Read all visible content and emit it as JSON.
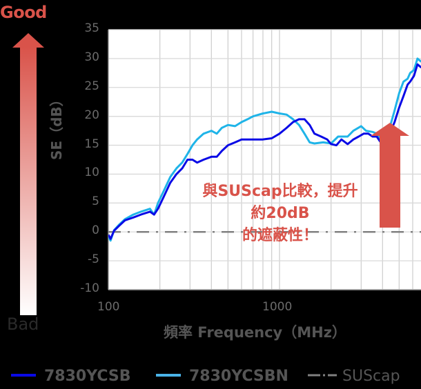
{
  "indicator": {
    "good_label": "Good",
    "bad_label": "Bad",
    "arrow_color_top": "#d9534a",
    "arrow_color_bottom": "#ffffff"
  },
  "callout": {
    "line1": "與SUScap比較，提升",
    "line2": "約20dB",
    "line3": "的遮蔽性！",
    "color": "#d9534a"
  },
  "chart_data": {
    "type": "line",
    "title": "",
    "xlabel": "頻率 Frequency（MHz）",
    "ylabel": "SE（dB）",
    "xscale": "log",
    "xlim": [
      100,
      6000
    ],
    "ylim": [
      -10,
      35
    ],
    "x_ticks": [
      "100",
      "1000"
    ],
    "y_ticks": [
      "35",
      "30",
      "25",
      "20",
      "15",
      "10",
      "5",
      "0",
      "-5",
      "-10"
    ],
    "grid": true,
    "legend_position": "bottom",
    "series": [
      {
        "name": "7830YCSB",
        "color": "#0a0ae6",
        "style": "solid",
        "points": [
          [
            100,
            -0.5
          ],
          [
            103,
            -1.2
          ],
          [
            108,
            0.2
          ],
          [
            115,
            1
          ],
          [
            125,
            2
          ],
          [
            140,
            2.5
          ],
          [
            155,
            3
          ],
          [
            175,
            3.5
          ],
          [
            185,
            3
          ],
          [
            195,
            4
          ],
          [
            210,
            6
          ],
          [
            230,
            8.5
          ],
          [
            250,
            10
          ],
          [
            270,
            11
          ],
          [
            290,
            12.5
          ],
          [
            310,
            12.5
          ],
          [
            330,
            12
          ],
          [
            360,
            12.5
          ],
          [
            400,
            13
          ],
          [
            430,
            13
          ],
          [
            460,
            14
          ],
          [
            500,
            15
          ],
          [
            550,
            15.5
          ],
          [
            600,
            16
          ],
          [
            650,
            16
          ],
          [
            700,
            16
          ],
          [
            800,
            16
          ],
          [
            900,
            16.2
          ],
          [
            1000,
            17
          ],
          [
            1100,
            18
          ],
          [
            1200,
            19
          ],
          [
            1300,
            19.5
          ],
          [
            1400,
            19.5
          ],
          [
            1500,
            18.5
          ],
          [
            1600,
            17
          ],
          [
            1750,
            16.5
          ],
          [
            1900,
            16
          ],
          [
            2000,
            15.2
          ],
          [
            2150,
            15
          ],
          [
            2300,
            16
          ],
          [
            2500,
            15.2
          ],
          [
            2700,
            16
          ],
          [
            2900,
            16.5
          ],
          [
            3100,
            17
          ],
          [
            3300,
            17
          ],
          [
            3500,
            16.5
          ],
          [
            3700,
            16.5
          ],
          [
            3900,
            15.5
          ],
          [
            4100,
            16
          ],
          [
            4400,
            17
          ],
          [
            4700,
            19
          ],
          [
            5000,
            21.5
          ],
          [
            5300,
            23.5
          ],
          [
            5600,
            25.5
          ],
          [
            5800,
            26
          ],
          [
            6100,
            27
          ],
          [
            6400,
            29
          ],
          [
            6700,
            28.5
          ],
          [
            7000,
            29
          ],
          [
            7300,
            28
          ],
          [
            7600,
            28.3
          ],
          [
            8000,
            27
          ]
        ]
      },
      {
        "name": "7830YCSBN",
        "color": "#1fb4e8",
        "style": "solid",
        "points": [
          [
            100,
            -0.8
          ],
          [
            103,
            -1.5
          ],
          [
            108,
            0.3
          ],
          [
            115,
            1.2
          ],
          [
            125,
            2.2
          ],
          [
            140,
            3
          ],
          [
            155,
            3.5
          ],
          [
            175,
            4
          ],
          [
            185,
            3
          ],
          [
            195,
            5
          ],
          [
            210,
            7
          ],
          [
            230,
            9.5
          ],
          [
            250,
            11
          ],
          [
            270,
            12
          ],
          [
            290,
            13.5
          ],
          [
            310,
            15
          ],
          [
            330,
            16
          ],
          [
            360,
            17
          ],
          [
            400,
            17.5
          ],
          [
            430,
            17
          ],
          [
            460,
            18
          ],
          [
            500,
            18.5
          ],
          [
            550,
            18.3
          ],
          [
            600,
            19
          ],
          [
            650,
            19.5
          ],
          [
            700,
            20
          ],
          [
            800,
            20.5
          ],
          [
            900,
            20.8
          ],
          [
            1000,
            20.5
          ],
          [
            1100,
            20.3
          ],
          [
            1200,
            19.5
          ],
          [
            1300,
            18.5
          ],
          [
            1400,
            17
          ],
          [
            1500,
            15.5
          ],
          [
            1600,
            15.3
          ],
          [
            1800,
            15.5
          ],
          [
            2000,
            15.3
          ],
          [
            2200,
            16.5
          ],
          [
            2500,
            16.5
          ],
          [
            2700,
            17.5
          ],
          [
            3000,
            18.3
          ],
          [
            3200,
            17.5
          ],
          [
            3500,
            17.3
          ],
          [
            3700,
            17
          ],
          [
            3900,
            16
          ],
          [
            4100,
            16.5
          ],
          [
            4400,
            18
          ],
          [
            4700,
            21
          ],
          [
            5000,
            24
          ],
          [
            5300,
            26
          ],
          [
            5600,
            26.5
          ],
          [
            5800,
            27.5
          ],
          [
            6100,
            28
          ],
          [
            6400,
            30
          ],
          [
            6700,
            29.5
          ],
          [
            7000,
            29.5
          ],
          [
            7300,
            28.8
          ],
          [
            7600,
            29
          ],
          [
            8000,
            25
          ]
        ]
      },
      {
        "name": "SUScap",
        "color": "#808080",
        "style": "dash-dot",
        "points": [
          [
            100,
            0
          ],
          [
            8000,
            0
          ]
        ]
      }
    ]
  },
  "legend": [
    {
      "label": "7830YCSB",
      "color": "#0a0ae6"
    },
    {
      "label": "7830YCSBN",
      "color": "#4ab3e8"
    },
    {
      "label": "SUScap",
      "color": "#808080"
    }
  ]
}
